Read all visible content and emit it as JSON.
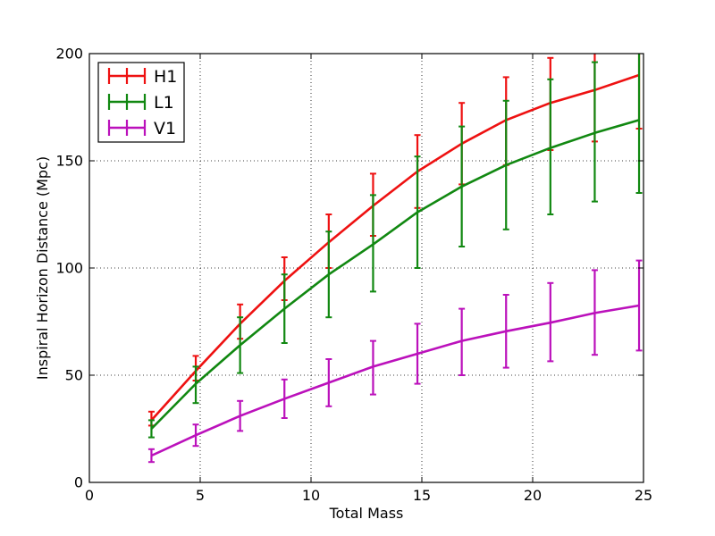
{
  "chart_data": {
    "type": "line",
    "title": "",
    "xlabel": "Total Mass",
    "ylabel": "Inspiral Horizon Distance (Mpc)",
    "xlim": [
      0,
      25
    ],
    "ylim": [
      0,
      200
    ],
    "xticks": [
      0,
      5,
      10,
      15,
      20,
      25
    ],
    "yticks": [
      0,
      50,
      100,
      150,
      200
    ],
    "grid": true,
    "legend_position": "top-left",
    "x": [
      2.8,
      4.8,
      6.8,
      8.8,
      10.8,
      12.8,
      14.8,
      16.8,
      18.8,
      20.8,
      22.8,
      24.8
    ],
    "series": [
      {
        "name": "H1",
        "color": "#ee1111",
        "values": [
          29,
          52,
          74,
          94,
          112,
          129,
          145,
          158,
          169,
          177,
          183,
          190
        ],
        "yerr_low": [
          2.5,
          4.5,
          7,
          9,
          12,
          14,
          17,
          19,
          21,
          22,
          24,
          25
        ],
        "yerr_high": [
          4,
          7,
          9,
          11,
          13,
          15,
          17,
          19,
          20,
          21,
          24,
          25
        ]
      },
      {
        "name": "L1",
        "color": "#118811",
        "values": [
          25,
          46,
          64,
          81,
          97,
          111,
          126,
          138,
          148,
          156,
          163,
          169
        ],
        "yerr_low": [
          4,
          9,
          13,
          16,
          20,
          22,
          26,
          28,
          30,
          31,
          32,
          34
        ],
        "yerr_high": [
          4,
          8,
          13,
          16,
          20,
          23,
          26,
          28,
          30,
          32,
          33,
          35
        ]
      },
      {
        "name": "V1",
        "color": "#bb11bb",
        "values": [
          12.5,
          22,
          31,
          39,
          46.5,
          54,
          60,
          66,
          70.5,
          74.5,
          79,
          82.5
        ],
        "yerr_low": [
          3,
          5,
          7,
          9,
          11,
          13,
          14,
          16,
          17,
          18,
          19.5,
          21
        ],
        "yerr_high": [
          3,
          5,
          7,
          9,
          11,
          12,
          14,
          15,
          17,
          18.5,
          20,
          21
        ]
      }
    ]
  }
}
